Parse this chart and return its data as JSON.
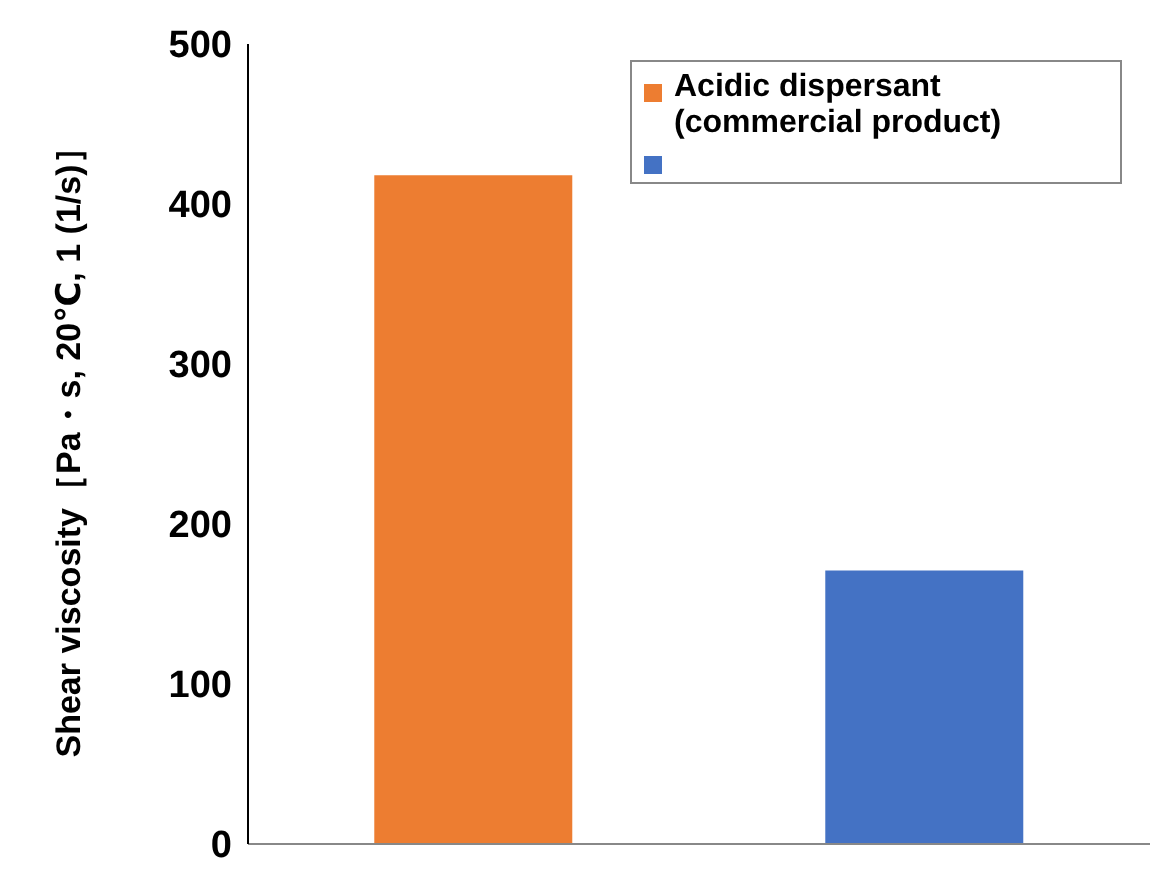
{
  "chart_data": {
    "type": "bar",
    "ylabel": "Shear viscosity［Pa・s, 20℃, 1 (1/s)］",
    "categories": [
      null,
      null
    ],
    "ylim": [
      0,
      500
    ],
    "yticks": [
      0,
      100,
      200,
      300,
      400,
      500
    ],
    "grid": false,
    "legend": "top right",
    "stacked": true,
    "series": [
      {
        "name": "Acidic dispersant (commercial product)",
        "color": "#ed7d31",
        "values": [
          418,
          null
        ]
      },
      {
        "color": "#4472c4",
        "values": [
          null,
          171
        ]
      }
    ]
  }
}
